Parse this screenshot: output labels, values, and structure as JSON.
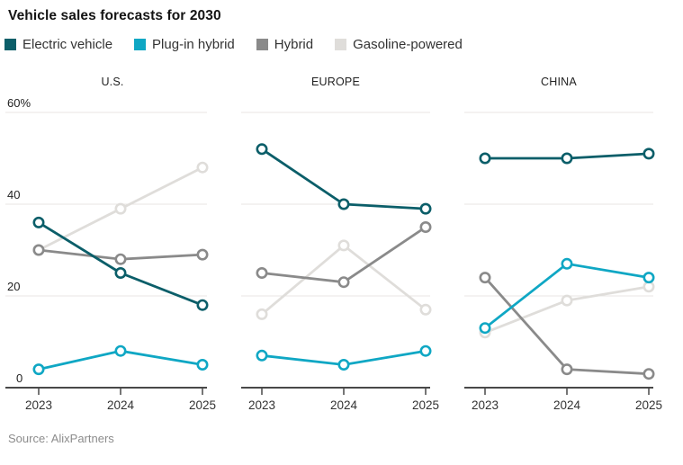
{
  "title": "Vehicle sales forecasts for 2030",
  "source": "Source: AlixPartners",
  "legend": {
    "items": [
      {
        "label": "Electric vehicle",
        "color": "#0b5e69"
      },
      {
        "label": "Plug-in hybrid",
        "color": "#0fa7c4"
      },
      {
        "label": "Hybrid",
        "color": "#8a8a8a"
      },
      {
        "label": "Gasoline-powered",
        "color": "#dfddda"
      }
    ]
  },
  "colors": {
    "grid": "#e8e6e3",
    "axis": "#484848",
    "ytick_text": "#222222",
    "xtick_text": "#333333",
    "marker_fill": "#ffffff"
  },
  "chart_data": [
    {
      "type": "line",
      "title": "U.S.",
      "x": [
        "2023",
        "2024",
        "2025"
      ],
      "ylim": [
        0,
        60
      ],
      "yticks": [
        0,
        20,
        40,
        60
      ],
      "ytick_labels": [
        "0",
        "20",
        "40",
        "60%"
      ],
      "grid": true,
      "series": [
        {
          "name": "Electric vehicle",
          "color": "#0b5e69",
          "values": [
            36,
            25,
            18
          ]
        },
        {
          "name": "Plug-in hybrid",
          "color": "#0fa7c4",
          "values": [
            4,
            8,
            5
          ]
        },
        {
          "name": "Hybrid",
          "color": "#8a8a8a",
          "values": [
            30,
            28,
            29
          ]
        },
        {
          "name": "Gasoline-powered",
          "color": "#dfddda",
          "values": [
            30,
            39,
            48
          ]
        }
      ]
    },
    {
      "type": "line",
      "title": "EUROPE",
      "x": [
        "2023",
        "2024",
        "2025"
      ],
      "ylim": [
        0,
        60
      ],
      "yticks": [
        0,
        20,
        40,
        60
      ],
      "ytick_labels": [
        "0",
        "20",
        "40",
        "60%"
      ],
      "grid": true,
      "series": [
        {
          "name": "Electric vehicle",
          "color": "#0b5e69",
          "values": [
            52,
            40,
            39
          ]
        },
        {
          "name": "Plug-in hybrid",
          "color": "#0fa7c4",
          "values": [
            7,
            5,
            8
          ]
        },
        {
          "name": "Hybrid",
          "color": "#8a8a8a",
          "values": [
            25,
            23,
            35
          ]
        },
        {
          "name": "Gasoline-powered",
          "color": "#dfddda",
          "values": [
            16,
            31,
            17
          ]
        }
      ]
    },
    {
      "type": "line",
      "title": "CHINA",
      "x": [
        "2023",
        "2024",
        "2025"
      ],
      "ylim": [
        0,
        60
      ],
      "yticks": [
        0,
        20,
        40,
        60
      ],
      "ytick_labels": [
        "0",
        "20",
        "40",
        "60%"
      ],
      "grid": true,
      "series": [
        {
          "name": "Electric vehicle",
          "color": "#0b5e69",
          "values": [
            50,
            50,
            51
          ]
        },
        {
          "name": "Plug-in hybrid",
          "color": "#0fa7c4",
          "values": [
            13,
            27,
            24
          ]
        },
        {
          "name": "Hybrid",
          "color": "#8a8a8a",
          "values": [
            24,
            4,
            3
          ]
        },
        {
          "name": "Gasoline-powered",
          "color": "#dfddda",
          "values": [
            12,
            19,
            22
          ]
        }
      ]
    }
  ]
}
